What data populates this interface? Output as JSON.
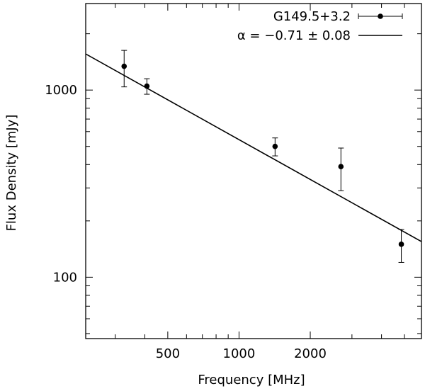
{
  "chart_data": {
    "type": "scatter",
    "xlabel": "Frequency [MHz]",
    "ylabel": "Flux Density [mJy]",
    "xscale": "log",
    "yscale": "log",
    "xlim": [
      225,
      5900
    ],
    "ylim": [
      47,
      2900
    ],
    "xticks": [
      500,
      1000,
      2000
    ],
    "yticks": [
      100,
      1000
    ],
    "grid": false,
    "legend_position": "top-right",
    "series": [
      {
        "name": "G149.5+3.2",
        "kind": "points-with-errorbars",
        "x": [
          327,
          408,
          1420,
          2695,
          4850
        ],
        "y": [
          1340,
          1050,
          500,
          390,
          150
        ],
        "yerr_low": [
          300,
          100,
          55,
          100,
          30
        ],
        "yerr_high": [
          290,
          100,
          55,
          100,
          30
        ]
      },
      {
        "name": "α = −0.71 ± 0.08",
        "kind": "fit-line",
        "x": [
          225,
          5900
        ],
        "y": [
          1560,
          155
        ]
      }
    ]
  }
}
